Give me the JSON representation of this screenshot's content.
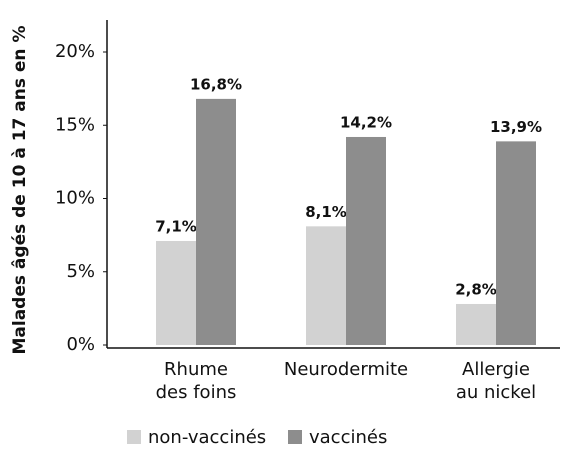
{
  "chart_data": {
    "type": "bar",
    "y_label": "Malades âgés de 10 à 17 ans en %",
    "categories": [
      "Rhume\ndes foins",
      "Neurodermite",
      "Allergie\nau nickel"
    ],
    "series": [
      {
        "name": "non-vaccinés",
        "color": "#d2d2d2",
        "values": [
          7.1,
          8.1,
          2.8
        ],
        "value_labels": [
          "7,1%",
          "8,1%",
          "2,8%"
        ]
      },
      {
        "name": "vaccinés",
        "color": "#8d8d8d",
        "values": [
          16.8,
          14.2,
          13.9
        ],
        "value_labels": [
          "16,8%",
          "14,2%",
          "13,9%"
        ]
      }
    ],
    "ylim": [
      0,
      20
    ],
    "yticks": [
      {
        "value": 0,
        "label": "0%"
      },
      {
        "value": 5,
        "label": "5%"
      },
      {
        "value": 10,
        "label": "10%"
      },
      {
        "value": 15,
        "label": "15%"
      },
      {
        "value": 20,
        "label": "20%"
      }
    ],
    "grid": false
  }
}
